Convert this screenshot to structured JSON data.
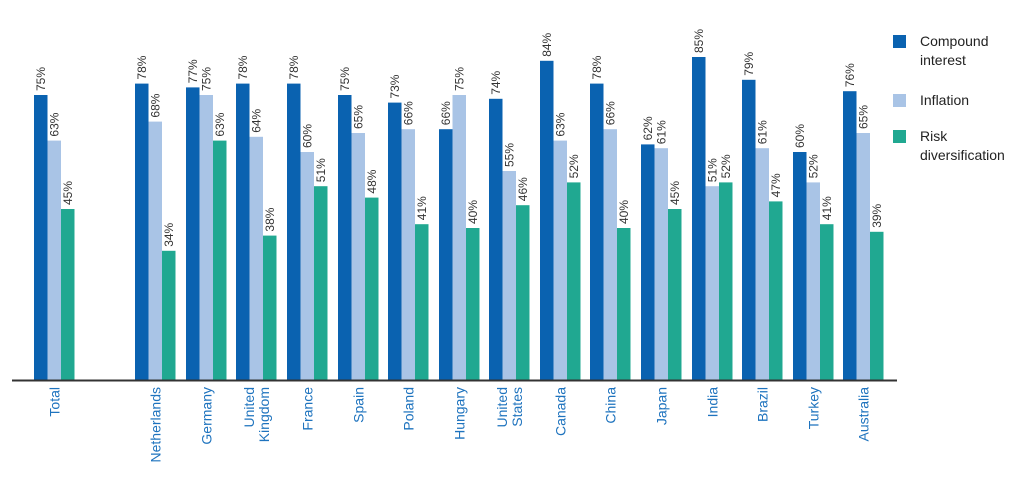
{
  "colors": {
    "compound": "#0a62b0",
    "inflation": "#a9c4e6",
    "risk": "#20a891",
    "axis": "#333333",
    "category_text": "#1e73be",
    "value_text": "#333333"
  },
  "legend": [
    {
      "label_lines": [
        "Compound",
        "interest"
      ],
      "color_key": "compound"
    },
    {
      "label_lines": [
        "Inflation"
      ],
      "color_key": "inflation"
    },
    {
      "label_lines": [
        "Risk",
        "diversification"
      ],
      "color_key": "risk"
    }
  ],
  "chart_data": {
    "type": "bar",
    "categories": [
      "Total",
      "Netherlands",
      "Germany",
      "United Kingdom",
      "France",
      "Spain",
      "Poland",
      "Hungary",
      "United States",
      "Canada",
      "China",
      "Japan",
      "India",
      "Brazil",
      "Turkey",
      "Australia"
    ],
    "category_lines": [
      [
        "Total"
      ],
      [
        "Netherlands"
      ],
      [
        "Germany"
      ],
      [
        "United",
        "Kingdom"
      ],
      [
        "France"
      ],
      [
        "Spain"
      ],
      [
        "Poland"
      ],
      [
        "Hungary"
      ],
      [
        "United",
        "States"
      ],
      [
        "Canada"
      ],
      [
        "China"
      ],
      [
        "Japan"
      ],
      [
        "India"
      ],
      [
        "Brazil"
      ],
      [
        "Turkey"
      ],
      [
        "Australia"
      ]
    ],
    "series": [
      {
        "name": "Compound interest",
        "color_key": "compound",
        "values": [
          75,
          78,
          77,
          78,
          78,
          75,
          73,
          66,
          74,
          84,
          78,
          62,
          85,
          79,
          60,
          76
        ]
      },
      {
        "name": "Inflation",
        "color_key": "inflation",
        "values": [
          63,
          68,
          75,
          64,
          60,
          65,
          66,
          75,
          55,
          63,
          66,
          61,
          51,
          61,
          52,
          65
        ]
      },
      {
        "name": "Risk diversification",
        "color_key": "risk",
        "values": [
          45,
          34,
          63,
          38,
          51,
          48,
          41,
          40,
          46,
          52,
          40,
          45,
          52,
          47,
          41,
          39
        ]
      }
    ],
    "value_suffix": "%",
    "ylim": [
      0,
      100
    ],
    "grid": false,
    "legend_position": "right"
  }
}
